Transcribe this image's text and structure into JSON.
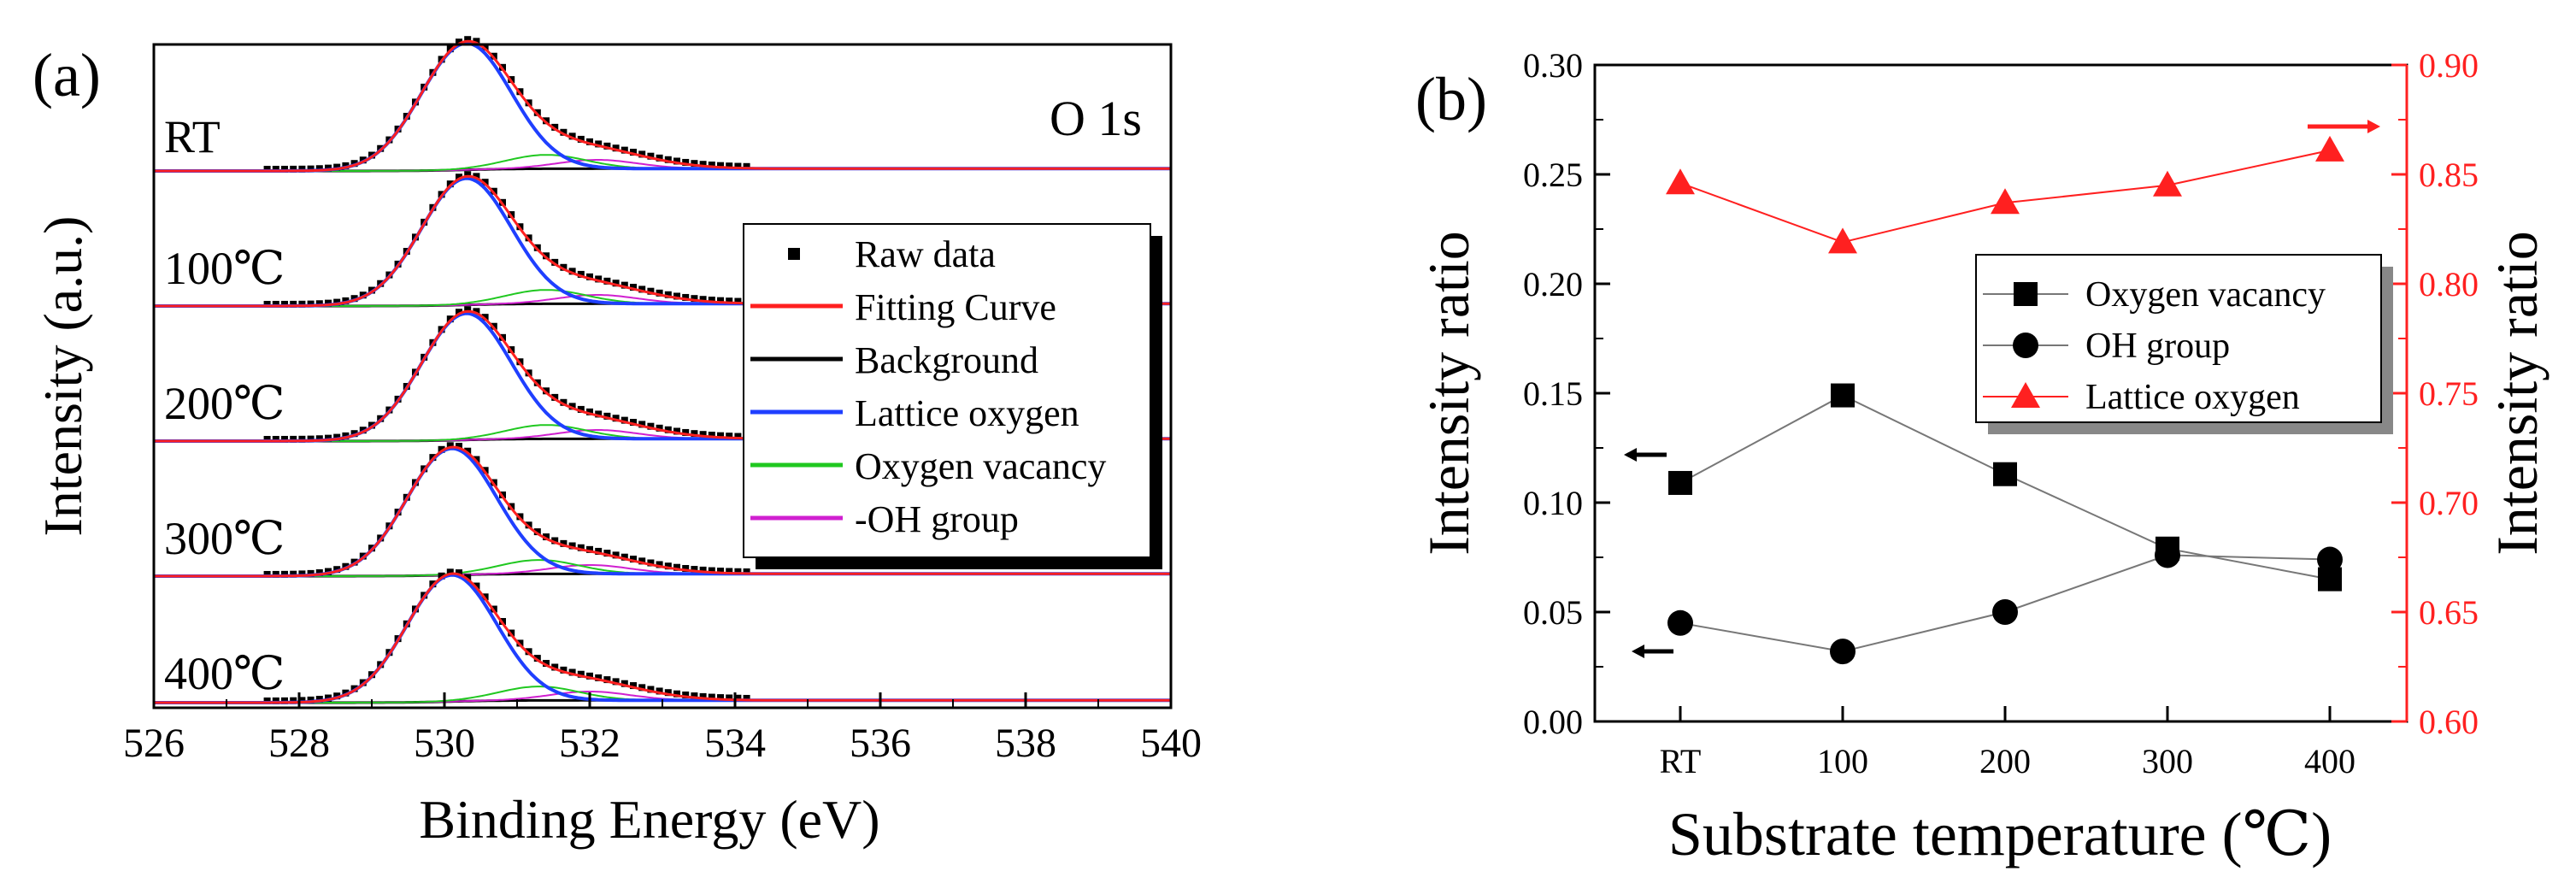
{
  "chart_data": [
    {
      "panel_label": "(a)",
      "type": "line",
      "annotation": "O 1s",
      "xlabel": "Binding Energy (eV)",
      "ylabel": "Intensity (a.u.)",
      "xlim": [
        526,
        540
      ],
      "x_ticks": [
        "526",
        "528",
        "530",
        "532",
        "534",
        "536",
        "538",
        "540"
      ],
      "grid": false,
      "legend_position": "right",
      "legend": [
        {
          "label": "Raw data",
          "color": "#000000",
          "marker": "square"
        },
        {
          "label": "Fitting Curve",
          "color": "#ff2020"
        },
        {
          "label": "Background",
          "color": "#000000"
        },
        {
          "label": "Lattice oxygen",
          "color": "#1f3fff"
        },
        {
          "label": "Oxygen vacancy",
          "color": "#20c820"
        },
        {
          "label": "-OH group",
          "color": "#d020d0"
        }
      ],
      "samples": [
        {
          "label": "RT",
          "lattice_peak_eV": 530.3,
          "vacancy_peak_eV": 531.4,
          "oh_peak_eV": 532.1
        },
        {
          "label": "100℃",
          "lattice_peak_eV": 530.3,
          "vacancy_peak_eV": 531.4,
          "oh_peak_eV": 532.1
        },
        {
          "label": "200℃",
          "lattice_peak_eV": 530.3,
          "vacancy_peak_eV": 531.4,
          "oh_peak_eV": 532.1
        },
        {
          "label": "300℃",
          "lattice_peak_eV": 530.1,
          "vacancy_peak_eV": 531.3,
          "oh_peak_eV": 532.0
        },
        {
          "label": "400℃",
          "lattice_peak_eV": 530.1,
          "vacancy_peak_eV": 531.3,
          "oh_peak_eV": 532.0
        }
      ]
    },
    {
      "panel_label": "(b)",
      "type": "scatter",
      "xlabel": "Substrate temperature (℃)",
      "ylabel_left": "Intensity ratio",
      "ylabel_right": "Intensity ratio",
      "categories": [
        "RT",
        "100",
        "200",
        "300",
        "400"
      ],
      "ylim_left": [
        0.0,
        0.3
      ],
      "ylim_right": [
        0.6,
        0.9
      ],
      "y_ticks_left": [
        "0.00",
        "0.05",
        "0.10",
        "0.15",
        "0.20",
        "0.25",
        "0.30"
      ],
      "y_ticks_right": [
        "0.60",
        "0.65",
        "0.70",
        "0.75",
        "0.80",
        "0.85",
        "0.90"
      ],
      "right_axis_color": "#ff2020",
      "grid": false,
      "legend_position": "right",
      "series": [
        {
          "name": "Oxygen vacancy",
          "axis": "left",
          "marker": "square",
          "color": "#000000",
          "values": [
            0.109,
            0.149,
            0.113,
            0.079,
            0.065
          ]
        },
        {
          "name": "OH group",
          "axis": "left",
          "marker": "circle",
          "color": "#000000",
          "values": [
            0.045,
            0.032,
            0.05,
            0.076,
            0.074
          ]
        },
        {
          "name": "Lattice oxygen",
          "axis": "right",
          "marker": "triangle",
          "color": "#ff2020",
          "values": [
            0.846,
            0.819,
            0.837,
            0.845,
            0.861
          ]
        }
      ]
    }
  ]
}
